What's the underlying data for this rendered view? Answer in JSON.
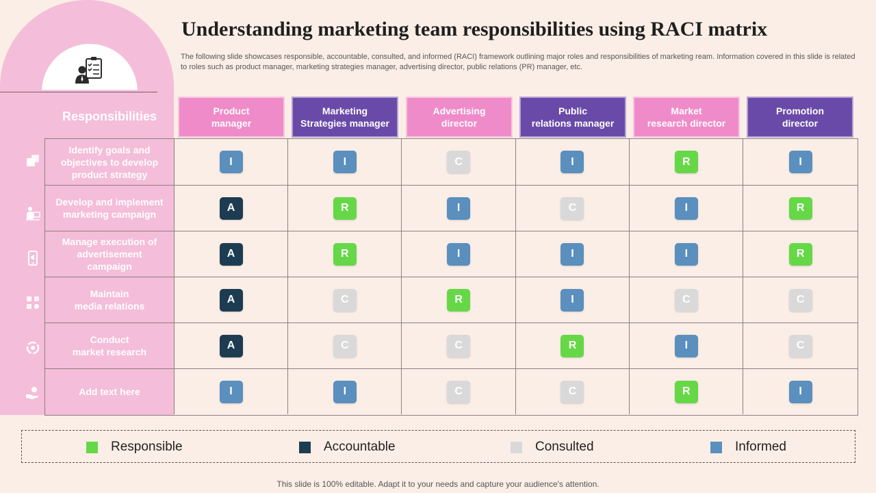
{
  "title": "Understanding marketing team responsibilities using RACI matrix",
  "description": "The following slide showcases responsible, accountable, consulted, and informed (RACI) framework outlining major roles and responsibilities of marketing ream. Information covered in this slide is related to roles such as product manager, marketing strategies manager, advertising director, public relations (PR) manager, etc.",
  "responsibilities_header": "Responsibilities",
  "columns": [
    {
      "label": "Product\nmanager",
      "style": "pink"
    },
    {
      "label": "Marketing\nStrategies manager",
      "style": "purple"
    },
    {
      "label": "Advertising\ndirector",
      "style": "pink"
    },
    {
      "label": "Public\nrelations manager",
      "style": "purple"
    },
    {
      "label": "Market\nresearch director",
      "style": "pink"
    },
    {
      "label": "Promotion\ndirector",
      "style": "purple"
    }
  ],
  "rows": [
    {
      "label": "Identify goals and\nobjectives to develop\nproduct strategy",
      "icon": "pieces-icon",
      "cells": [
        "I",
        "I",
        "C",
        "I",
        "R",
        "I"
      ]
    },
    {
      "label": "Develop and implement\nmarketing campaign",
      "icon": "presenter-icon",
      "cells": [
        "A",
        "R",
        "I",
        "C",
        "I",
        "R"
      ]
    },
    {
      "label": "Manage execution of\nadvertisement\ncampaign",
      "icon": "mobile-ad-icon",
      "cells": [
        "A",
        "R",
        "I",
        "I",
        "I",
        "R"
      ]
    },
    {
      "label": "Maintain\nmedia relations",
      "icon": "network-icon",
      "cells": [
        "A",
        "C",
        "R",
        "I",
        "C",
        "C"
      ]
    },
    {
      "label": "Conduct\nmarket research",
      "icon": "cycle-icon",
      "cells": [
        "A",
        "C",
        "C",
        "R",
        "I",
        "C"
      ]
    },
    {
      "label": "Add  text here",
      "icon": "hand-icon",
      "cells": [
        "I",
        "I",
        "C",
        "C",
        "R",
        "I"
      ]
    }
  ],
  "legend": [
    {
      "key": "R",
      "label": "Responsible",
      "color": "#66d847"
    },
    {
      "key": "A",
      "label": "Accountable",
      "color": "#1d3c52"
    },
    {
      "key": "C",
      "label": "Consulted",
      "color": "#d9d9d9"
    },
    {
      "key": "I",
      "label": "Informed",
      "color": "#5a8fbe"
    }
  ],
  "footer": "This slide is 100% editable. Adapt it to your needs and capture your audience's attention."
}
